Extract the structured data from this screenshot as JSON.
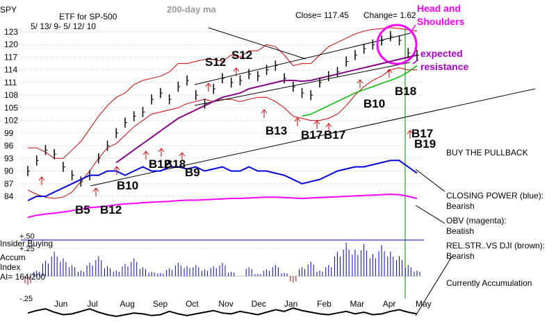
{
  "chart_data": {
    "type": "line",
    "ticker": "SPY",
    "title": "ETF for SP-500",
    "date_range": "5/ 13/ 9- 5/ 12/ 10",
    "ma_label": "200-day ma",
    "close_text": "Close=  117.45",
    "change_text": "Change= 1.62",
    "head_shoulders_label": "Head and Shoulders",
    "expected_resistance_label": "expected resistance",
    "y_ticks": [
      "123",
      "120",
      "117",
      "114",
      "111",
      "108",
      "105",
      "102",
      "99",
      "96",
      "93",
      "90",
      "87",
      "84"
    ],
    "y_tick_values": [
      123,
      120,
      117,
      114,
      111,
      108,
      105,
      102,
      99,
      96,
      93,
      90,
      87,
      84
    ],
    "ylim": [
      84,
      123
    ],
    "months": [
      "Jun",
      "Jul",
      "Aug",
      "Sep",
      "Oct",
      "Nov",
      "Dec",
      "Jan",
      "Feb",
      "Mar",
      "Apr",
      "May"
    ],
    "price_close": [
      90,
      92.5,
      95,
      94,
      91,
      89,
      87.5,
      89,
      93,
      96,
      99,
      101.5,
      103,
      104,
      107,
      108.5,
      107,
      110,
      111.5,
      108,
      106,
      109.5,
      112,
      111,
      111.5,
      113,
      112.5,
      114,
      115,
      112,
      110,
      108.5,
      108,
      111,
      112.5,
      113.5,
      116,
      117.5,
      119,
      120,
      121,
      122,
      121,
      118,
      117.5
    ],
    "upper_band": [
      95.5,
      95.5,
      94.5,
      93,
      93,
      95,
      97,
      100,
      103,
      105.5,
      107.5,
      108.5,
      110.5,
      111.5,
      112,
      112.5,
      113.5,
      115.5,
      115.5,
      116,
      116.5,
      116.5,
      116,
      117.5,
      117,
      118.5,
      118.5,
      120,
      119.5,
      117.5,
      115,
      115.5,
      115.5,
      117.5,
      119.5,
      120.5,
      121.5,
      122.5,
      123.2,
      123.6,
      123.8,
      124,
      123.8,
      123.5,
      123.2
    ],
    "lower_band": [
      85.5,
      84.5,
      83.8,
      83.5,
      83.8,
      85,
      87.5,
      90,
      93,
      95.5,
      96.5,
      98.5,
      100.5,
      102,
      103.5,
      104,
      104.5,
      105,
      106,
      106.5,
      107,
      106.5,
      107,
      107,
      106.5,
      107,
      107.5,
      107.5,
      106.5,
      105,
      103,
      102.5,
      102,
      102,
      102.5,
      103.5,
      105.5,
      108,
      110,
      111.5,
      112.5,
      114,
      114.5,
      114,
      114
    ],
    "ma_values": [
      null,
      null,
      null,
      null,
      null,
      null,
      null,
      null,
      null,
      null,
      92,
      93.5,
      95,
      96.5,
      98,
      99.5,
      101,
      102.5,
      103.5,
      104.5,
      105.5,
      106.5,
      107.5,
      108,
      108.5,
      109.5,
      110,
      110.5,
      111,
      111.5,
      111.5,
      111.3,
      111.5,
      112,
      112.5,
      113,
      113.5,
      114,
      114.5,
      115,
      115.5,
      116,
      116.5,
      117,
      117.5
    ],
    "green_ma_values": [
      null,
      null,
      null,
      null,
      null,
      null,
      null,
      null,
      null,
      null,
      null,
      null,
      null,
      null,
      null,
      null,
      null,
      null,
      null,
      null,
      null,
      null,
      null,
      null,
      null,
      null,
      null,
      null,
      null,
      null,
      null,
      103,
      103.5,
      104.5,
      105.5,
      106.5,
      107.5,
      108.5,
      109.3,
      110,
      110.8,
      111.5,
      112.3,
      113.5,
      115
    ],
    "closing_power": [
      83,
      84,
      84,
      85,
      86,
      87,
      88,
      89,
      89,
      90,
      90,
      89,
      90,
      91,
      90,
      90,
      91,
      91,
      90.5,
      91,
      90,
      90.5,
      91,
      90,
      90,
      91,
      90,
      90,
      89.5,
      89,
      88,
      87,
      87.5,
      88,
      89,
      90,
      90.5,
      91,
      91,
      91.5,
      92,
      92.5,
      92.5,
      91,
      89.5
    ],
    "obv": [
      79,
      79.5,
      79.8,
      80,
      80.3,
      80.6,
      81,
      81.3,
      81.5,
      81.7,
      82,
      82.2,
      82.3,
      82.5,
      82.6,
      82.7,
      82.8,
      83,
      83.1,
      83.1,
      83.2,
      83.3,
      83.4,
      83.5,
      83.5,
      83.6,
      83.7,
      83.8,
      83.8,
      83.7,
      83.6,
      83.5,
      83.6,
      83.7,
      83.8,
      83.9,
      84,
      84.1,
      84.2,
      84.3,
      84.4,
      84.5,
      84.4,
      84,
      83.5
    ],
    "signals": [
      "S12",
      "S12",
      "B18",
      "B10",
      "B13",
      "B17",
      "B17",
      "B17",
      "B19",
      "B12",
      "B18",
      "B9",
      "B10",
      "B5",
      "B12"
    ],
    "insider_label": "Insider Buying",
    "accum_label": "Accum Index AI= 164/200",
    "ai_levels": [
      "+.50",
      "+.25",
      "-.25"
    ],
    "accum_values": [
      -0.08,
      0.05,
      0.14,
      0.22,
      0.16,
      0.1,
      0.05,
      0.12,
      0.18,
      0.09,
      0.05,
      0.11,
      0.16,
      0.08,
      0.04,
      0.03,
      0.07,
      0.12,
      0.09,
      0.1,
      0.06,
      0.09,
      0.12,
      0.04,
      0.0,
      0.08,
      0.02,
      0.06,
      0.1,
      0.03,
      -0.06,
      0.08,
      0.13,
      0.05,
      0.1,
      0.22,
      0.3,
      0.24,
      0.29,
      0.2,
      0.28,
      0.22,
      0.18,
      0.1,
      0.05
    ],
    "relstr_values": [
      -0.32,
      -0.35,
      -0.37,
      -0.33,
      -0.3,
      -0.31,
      -0.34,
      -0.37,
      -0.33,
      -0.3,
      -0.28,
      -0.3,
      -0.32,
      -0.31,
      -0.29,
      -0.3,
      -0.34,
      -0.31,
      -0.29,
      -0.31,
      -0.33,
      -0.35,
      -0.32,
      -0.31,
      -0.34,
      -0.32,
      -0.3,
      -0.33,
      -0.36,
      -0.34,
      -0.38,
      -0.35,
      -0.33,
      -0.31,
      -0.3,
      -0.32,
      -0.34,
      -0.31,
      -0.33,
      -0.3,
      -0.31,
      -0.34,
      -0.36,
      -0.33,
      -0.31
    ],
    "annotations": {
      "buy_pullback": "BUY THE PULLBACK",
      "closing_power": "CLOSING POWER (blue): Bearish",
      "obv": "OBV (magenta): Beatish",
      "relstr": "REL.STR..VS DJI (brown): Bearish",
      "currently": "Currently Accumulation"
    },
    "colors": {
      "price": "#000000",
      "bands": "#cc0000",
      "ma": "#880088",
      "green_ma": "#00bb00",
      "closing_power": "#0000dd",
      "obv": "#ff00ff",
      "accum": "#0000cc",
      "accum_neg": "#aa0000",
      "head_shoulders": "#ff00ff",
      "resistance": "#aa00cc",
      "gray_title": "#999999",
      "grid": "#bbbbbb"
    }
  }
}
